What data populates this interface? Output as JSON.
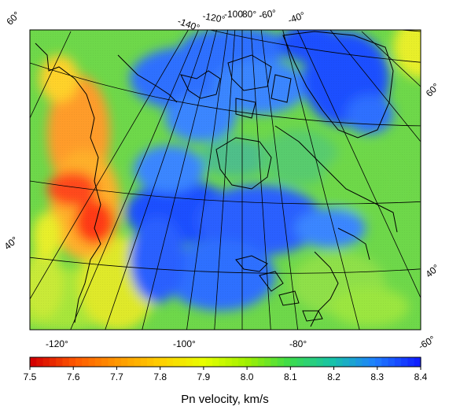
{
  "map": {
    "graticule": {
      "top_lon_labels": [
        "-140°",
        "-120°",
        "-100",
        "80°",
        "-60°",
        "-40°"
      ],
      "bottom_lon_labels": [
        "-120°",
        "-100°",
        "-80°",
        "-60°"
      ],
      "left_lat_labels": [
        "60°",
        "40°"
      ],
      "right_lat_labels": [
        "60°",
        "40°"
      ]
    },
    "colorbar": {
      "title": "Pn velocity, km/s",
      "min": 7.5,
      "max": 8.4,
      "ticks": [
        "7.5",
        "7.6",
        "7.7",
        "7.8",
        "7.9",
        "8.0",
        "8.1",
        "8.2",
        "8.3",
        "8.4"
      ],
      "colors": [
        "#d40000",
        "#ff5a00",
        "#ff9a00",
        "#ffd000",
        "#e8ff00",
        "#a0f000",
        "#3ddc4a",
        "#17c3a8",
        "#1f7fff",
        "#1020ff"
      ]
    },
    "colors": {
      "fast_blue": "#1f4fff",
      "mid_blue": "#3a86ff",
      "green": "#66d94a",
      "yellow": "#e8ef2a",
      "orange": "#ff9c2a",
      "red": "#ff3a16",
      "coast": "#000000"
    }
  }
}
